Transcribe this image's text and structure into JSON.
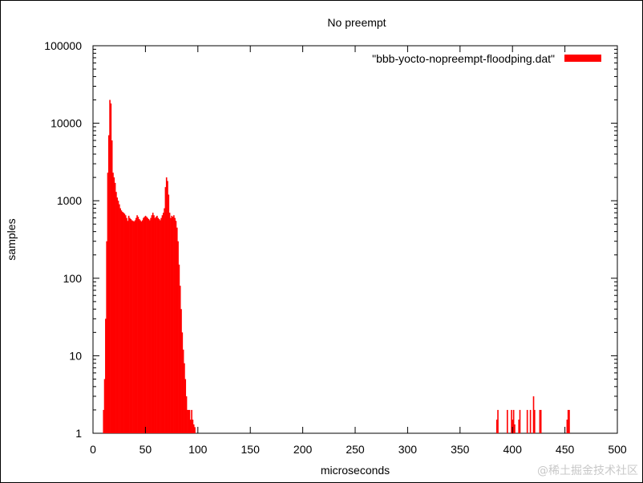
{
  "chart_data": {
    "type": "bar",
    "title": "No preempt",
    "xlabel": "microseconds",
    "ylabel": "samples",
    "y_scale": "log",
    "xlim": [
      0,
      500
    ],
    "ylim": [
      1,
      100000
    ],
    "grid": false,
    "legend_placement": "top-right",
    "color": "#ff0000",
    "series": [
      {
        "name": "\"bbb-yocto-nopreempt-floodping.dat\"",
        "values_x": [
          10,
          11,
          12,
          13,
          14,
          15,
          16,
          17,
          18,
          19,
          20,
          21,
          22,
          23,
          24,
          25,
          26,
          27,
          28,
          29,
          30,
          31,
          32,
          33,
          34,
          35,
          36,
          37,
          38,
          39,
          40,
          41,
          42,
          43,
          44,
          45,
          46,
          47,
          48,
          49,
          50,
          51,
          52,
          53,
          54,
          55,
          56,
          57,
          58,
          59,
          60,
          61,
          62,
          63,
          64,
          65,
          66,
          67,
          68,
          69,
          70,
          71,
          72,
          73,
          74,
          75,
          76,
          77,
          78,
          79,
          80,
          81,
          82,
          83,
          84,
          85,
          86,
          87,
          88,
          89,
          90,
          91,
          92,
          93,
          94,
          95,
          96,
          97,
          385,
          386,
          395,
          399,
          400,
          401,
          402,
          406,
          407,
          414,
          417,
          420,
          421,
          426,
          427,
          452,
          453,
          454
        ],
        "values_y": [
          2,
          5,
          30,
          300,
          2300,
          7000,
          20000,
          18000,
          6000,
          2300,
          2000,
          1700,
          1300,
          1100,
          1000,
          900,
          800,
          750,
          720,
          700,
          680,
          650,
          600,
          550,
          640,
          600,
          580,
          560,
          550,
          540,
          560,
          600,
          650,
          620,
          580,
          560,
          540,
          560,
          600,
          620,
          640,
          620,
          600,
          580,
          560,
          600,
          650,
          700,
          650,
          600,
          620,
          640,
          600,
          580,
          560,
          600,
          650,
          700,
          800,
          1500,
          2000,
          1800,
          1200,
          700,
          600,
          640,
          620,
          650,
          600,
          550,
          450,
          300,
          150,
          80,
          40,
          20,
          12,
          8,
          5,
          3,
          2,
          2,
          2,
          1.5,
          2,
          1.5,
          1.3,
          1.2,
          1.5,
          2,
          2,
          2,
          1.5,
          2,
          1.3,
          1.5,
          2,
          2,
          2,
          3,
          2,
          2,
          2,
          1.5,
          2,
          2
        ]
      }
    ],
    "x_ticks": [
      "0",
      "50",
      "100",
      "150",
      "200",
      "250",
      "300",
      "350",
      "400",
      "450",
      "500"
    ],
    "y_ticks": [
      "1",
      "10",
      "100",
      "1000",
      "10000",
      "100000"
    ]
  },
  "watermark": "@稀土掘金技术社区"
}
